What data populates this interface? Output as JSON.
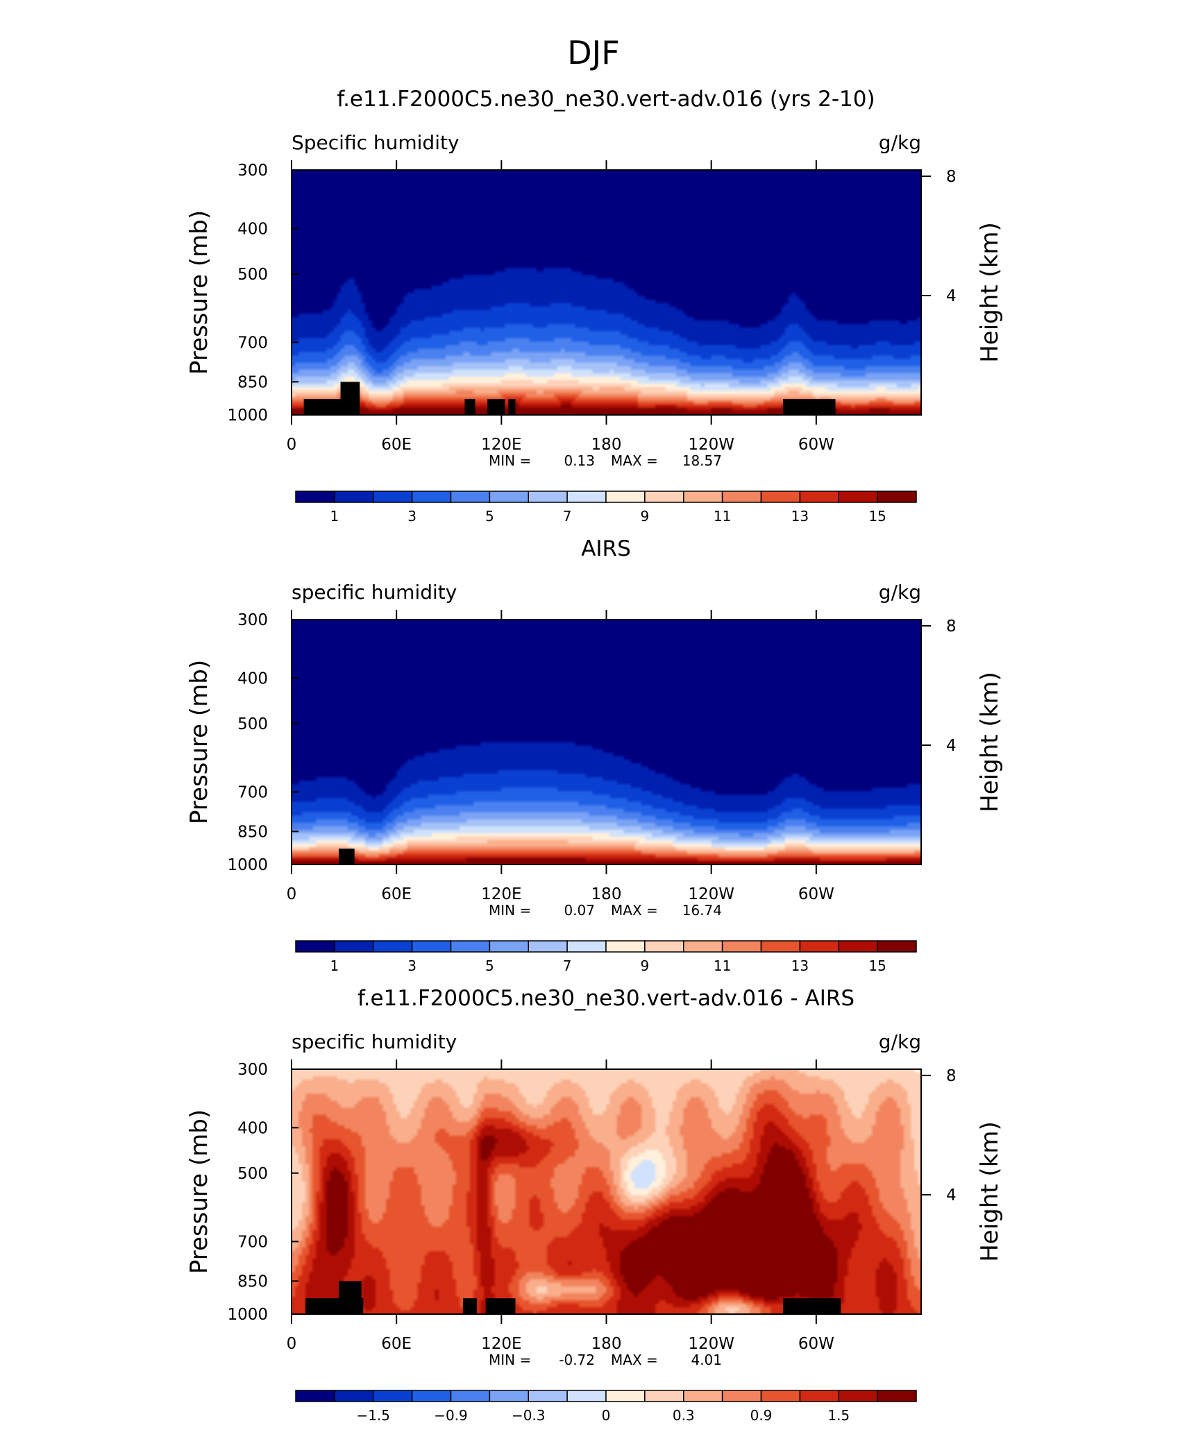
{
  "figure_title": "DJF",
  "colors": {
    "ramp": [
      "#00007f",
      "#0020b0",
      "#0a40d2",
      "#2060e6",
      "#4a80f0",
      "#7aa2f5",
      "#a6c2f8",
      "#d0e2fc",
      "#fff0dc",
      "#fdd2b8",
      "#f9ae8c",
      "#f2855f",
      "#e6552e",
      "#d22a12",
      "#ae0d04",
      "#800000"
    ],
    "topography": "#000000"
  },
  "chart_data": [
    {
      "type": "heatmap",
      "title": "f.e11.F2000C5.ne30_ne30.vert-adv.016 (yrs 2-10)",
      "left_label": "Specific humidity",
      "right_label": "g/kg",
      "ylabel": "Pressure (mb)",
      "ylabel_right": "Height (km)",
      "y_ticks": [
        "300",
        "400",
        "500",
        "700",
        "850",
        "1000"
      ],
      "y_ticks_right": [
        "8",
        "4"
      ],
      "x_ticks": [
        "0",
        "60E",
        "120E",
        "180",
        "120W",
        "60W"
      ],
      "xlim": [
        0,
        360
      ],
      "ylim": [
        1000,
        300
      ],
      "stats": {
        "min_label": "MIN =",
        "min": "0.13",
        "max_label": "MAX =",
        "max": "18.57"
      },
      "colorbar": {
        "levels": 16,
        "labels": [
          "1",
          "3",
          "5",
          "7",
          "9",
          "11",
          "13",
          "15"
        ]
      },
      "mode": "model",
      "topography": [
        {
          "lon_start": 7,
          "lon_end": 35,
          "p_top": 925
        },
        {
          "lon_start": 28,
          "lon_end": 39,
          "p_top": 850
        },
        {
          "lon_start": 99,
          "lon_end": 105,
          "p_top": 925
        },
        {
          "lon_start": 112,
          "lon_end": 122,
          "p_top": 925
        },
        {
          "lon_start": 124,
          "lon_end": 128,
          "p_top": 925
        },
        {
          "lon_start": 281,
          "lon_end": 311,
          "p_top": 925
        }
      ]
    },
    {
      "type": "heatmap",
      "title": "AIRS",
      "left_label": "specific humidity",
      "right_label": "g/kg",
      "ylabel": "Pressure (mb)",
      "ylabel_right": "Height (km)",
      "y_ticks": [
        "300",
        "400",
        "500",
        "700",
        "850",
        "1000"
      ],
      "y_ticks_right": [
        "8",
        "4"
      ],
      "x_ticks": [
        "0",
        "60E",
        "120E",
        "180",
        "120W",
        "60W"
      ],
      "xlim": [
        0,
        360
      ],
      "ylim": [
        1000,
        300
      ],
      "stats": {
        "min_label": "MIN =",
        "min": "0.07",
        "max_label": "MAX =",
        "max": "16.74"
      },
      "colorbar": {
        "levels": 16,
        "labels": [
          "1",
          "3",
          "5",
          "7",
          "9",
          "11",
          "13",
          "15"
        ]
      },
      "mode": "obs",
      "topography": [
        {
          "lon_start": 27,
          "lon_end": 36,
          "p_top": 925
        }
      ]
    },
    {
      "type": "heatmap",
      "title": "f.e11.F2000C5.ne30_ne30.vert-adv.016 - AIRS",
      "left_label": "specific humidity",
      "right_label": "g/kg",
      "ylabel": "Pressure (mb)",
      "ylabel_right": "Height (km)",
      "y_ticks": [
        "300",
        "400",
        "500",
        "700",
        "850",
        "1000"
      ],
      "y_ticks_right": [
        "8",
        "4"
      ],
      "x_ticks": [
        "0",
        "60E",
        "120E",
        "180",
        "120W",
        "60W"
      ],
      "xlim": [
        0,
        360
      ],
      "ylim": [
        1000,
        300
      ],
      "stats": {
        "min_label": "MIN =",
        "min": "-0.72",
        "max_label": "MAX =",
        "max": "4.01"
      },
      "colorbar": {
        "levels": 16,
        "labels": [
          "-1.5",
          "-0.9",
          "-0.3",
          "0",
          "0.3",
          "0.9",
          "1.5"
        ]
      },
      "mode": "diff",
      "topography": [
        {
          "lon_start": 8,
          "lon_end": 41,
          "p_top": 925
        },
        {
          "lon_start": 27,
          "lon_end": 40,
          "p_top": 850
        },
        {
          "lon_start": 98,
          "lon_end": 106,
          "p_top": 925
        },
        {
          "lon_start": 111,
          "lon_end": 128,
          "p_top": 925
        },
        {
          "lon_start": 281,
          "lon_end": 314,
          "p_top": 925
        }
      ]
    }
  ]
}
